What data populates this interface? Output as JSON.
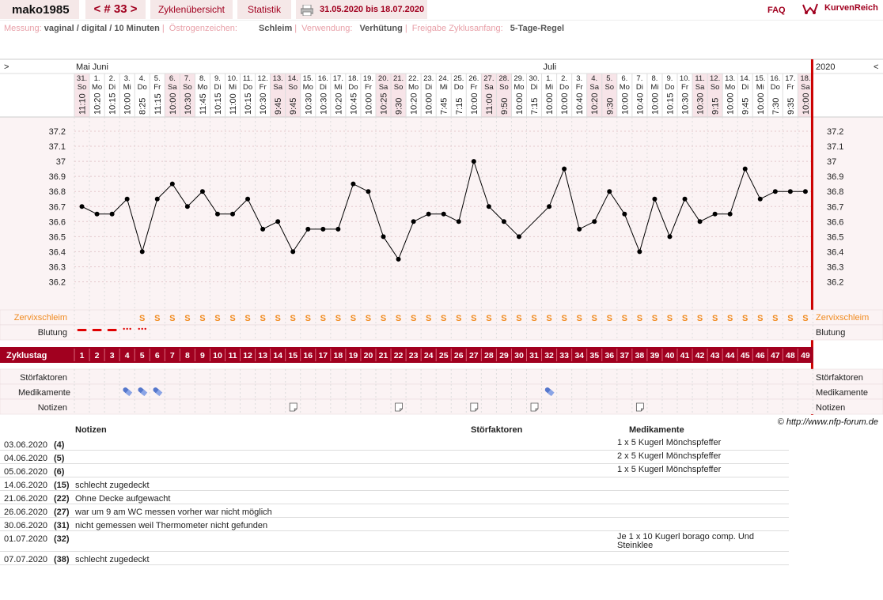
{
  "header": {
    "username": "mako1985",
    "cycle_nav": "< # 33 >",
    "tab_cycles": "Zyklenübersicht",
    "tab_stats": "Statistik",
    "date_range": "31.05.2020 bis 18.07.2020",
    "faq": "FAQ",
    "brand": "KurvenReich"
  },
  "subheader": {
    "messung_label": "Messung:",
    "messung_value": "vaginal / digital / 10 Minuten",
    "oestrogen_label": "Östrogenzeichen:",
    "oestrogen_value": "Schleim",
    "verwendung_label": "Verwendung:",
    "verwendung_value": "Verhütung",
    "freigabe_label": "Freigabe Zyklusanfang:",
    "freigabe_value": "5-Tage-Regel"
  },
  "chart_nav": {
    "prev": ">",
    "next": "<",
    "year": "2020"
  },
  "months": [
    {
      "label": "Mai Juni",
      "day_index": 0
    },
    {
      "label": "Juli",
      "day_index": 31
    }
  ],
  "chart_data": {
    "type": "line",
    "ylim": [
      36.1,
      37.25
    ],
    "yticks": [
      "37.2",
      "37.1",
      "37",
      "36.9",
      "36.8",
      "36.7",
      "36.6",
      "36.5",
      "36.4",
      "36.3",
      "36.2"
    ],
    "dates": [
      "31.",
      "1.",
      "2.",
      "3.",
      "4.",
      "5.",
      "6.",
      "7.",
      "8.",
      "9.",
      "10.",
      "11.",
      "12.",
      "13.",
      "14.",
      "15.",
      "16.",
      "17.",
      "18.",
      "19.",
      "20.",
      "21.",
      "22.",
      "23.",
      "24.",
      "25.",
      "26.",
      "27.",
      "28.",
      "29.",
      "30.",
      "1.",
      "2.",
      "3.",
      "4.",
      "5.",
      "6.",
      "7.",
      "8.",
      "9.",
      "10.",
      "11.",
      "12.",
      "13.",
      "14.",
      "15.",
      "16.",
      "17.",
      "18."
    ],
    "weekdays": [
      "So",
      "Mo",
      "Di",
      "Mi",
      "Do",
      "Fr",
      "Sa",
      "So",
      "Mo",
      "Di",
      "Mi",
      "Do",
      "Fr",
      "Sa",
      "So",
      "Mo",
      "Di",
      "Mi",
      "Do",
      "Fr",
      "Sa",
      "So",
      "Mo",
      "Di",
      "Mi",
      "Do",
      "Fr",
      "Sa",
      "So",
      "Mo",
      "Di",
      "Mi",
      "Do",
      "Fr",
      "Sa",
      "So",
      "Mo",
      "Di",
      "Mi",
      "Do",
      "Fr",
      "Sa",
      "So",
      "Mo",
      "Di",
      "Mi",
      "Do",
      "Fr",
      "Sa"
    ],
    "times": [
      "11:10",
      "10:20",
      "10:15",
      "10:00",
      "8:25",
      "11:15",
      "10:00",
      "10:30",
      "11:45",
      "10:15",
      "11:00",
      "10:15",
      "10:30",
      "9:45",
      "9:45",
      "10:30",
      "10:30",
      "10:20",
      "10:45",
      "10:00",
      "10:25",
      "9:30",
      "10:20",
      "10:00",
      "7:45",
      "7:15",
      "10:00",
      "11:00",
      "9:50",
      "10:00",
      "7:15",
      "10:00",
      "10:00",
      "10:40",
      "10:20",
      "9:30",
      "10:00",
      "10:40",
      "10:00",
      "10:15",
      "10:30",
      "10:30",
      "9:15",
      "10:00",
      "9:45",
      "10:00",
      "7:30",
      "9:35",
      "10:00"
    ],
    "values": [
      36.7,
      36.65,
      36.65,
      36.75,
      36.4,
      36.75,
      36.85,
      36.7,
      36.8,
      36.65,
      36.65,
      36.75,
      36.55,
      36.6,
      36.4,
      36.55,
      36.55,
      36.55,
      36.85,
      36.8,
      36.5,
      36.35,
      36.6,
      36.65,
      36.65,
      36.6,
      37.0,
      36.7,
      36.6,
      36.5,
      null,
      36.7,
      36.95,
      36.55,
      36.6,
      36.8,
      36.65,
      36.4,
      36.75,
      36.5,
      36.75,
      36.6,
      36.65,
      36.65,
      36.95,
      36.75,
      36.8,
      36.8,
      36.8
    ],
    "cycle_days": [
      "1",
      "2",
      "3",
      "4",
      "5",
      "6",
      "7",
      "8",
      "9",
      "10",
      "11",
      "12",
      "13",
      "14",
      "15",
      "16",
      "17",
      "18",
      "19",
      "20",
      "21",
      "22",
      "23",
      "24",
      "25",
      "26",
      "27",
      "28",
      "29",
      "30",
      "31",
      "32",
      "33",
      "34",
      "35",
      "36",
      "37",
      "38",
      "39",
      "40",
      "41",
      "42",
      "43",
      "44",
      "45",
      "46",
      "47",
      "48",
      "49"
    ],
    "cervix_mucus_symbol": "S",
    "cervix_mucus_days": [
      5,
      6,
      7,
      8,
      9,
      10,
      11,
      12,
      13,
      14,
      15,
      16,
      17,
      18,
      19,
      20,
      21,
      22,
      23,
      24,
      25,
      26,
      27,
      28,
      29,
      30,
      31,
      32,
      33,
      34,
      35,
      36,
      37,
      38,
      39,
      40,
      41,
      42,
      43,
      44,
      45,
      46,
      47,
      48,
      49
    ],
    "bleeding": [
      {
        "day": 1,
        "type": "strong"
      },
      {
        "day": 2,
        "type": "strong"
      },
      {
        "day": 3,
        "type": "strong"
      },
      {
        "day": 4,
        "type": "spotting"
      },
      {
        "day": 5,
        "type": "spotting"
      }
    ],
    "medication_days": [
      4,
      5,
      6,
      32
    ],
    "note_days": [
      15,
      22,
      27,
      31,
      38
    ]
  },
  "row_labels": {
    "zervix": "Zervixschleim",
    "blutung": "Blutung",
    "zyklustag": "Zyklustag",
    "stoer": "Störfaktoren",
    "medi": "Medikamente",
    "notizen": "Notizen"
  },
  "copyright": "© http://www.nfp-forum.de",
  "notes_table": {
    "headers": {
      "notes": "Notizen",
      "disturb": "Störfaktoren",
      "meds": "Medikamente"
    },
    "rows": [
      {
        "date": "03.06.2020",
        "day": "(4)",
        "note": "",
        "meds": "1 x 5 Kugerl Mönchspfeffer"
      },
      {
        "date": "04.06.2020",
        "day": "(5)",
        "note": "",
        "meds": "2 x 5 Kugerl Mönchspfeffer"
      },
      {
        "date": "05.06.2020",
        "day": "(6)",
        "note": "",
        "meds": "1 x 5 Kugerl Mönchspfeffer"
      },
      {
        "date": "14.06.2020",
        "day": "(15)",
        "note": "schlecht zugedeckt",
        "meds": ""
      },
      {
        "date": "21.06.2020",
        "day": "(22)",
        "note": "Ohne Decke aufgewacht",
        "meds": ""
      },
      {
        "date": "26.06.2020",
        "day": "(27)",
        "note": "war um 9 am WC messen vorher war nicht möglich",
        "meds": ""
      },
      {
        "date": "30.06.2020",
        "day": "(31)",
        "note": "nicht gemessen weil Thermometer nicht gefunden",
        "meds": ""
      },
      {
        "date": "01.07.2020",
        "day": "(32)",
        "note": "",
        "meds": "Je 1 x 10 Kugerl borago comp. Und Steinklee"
      },
      {
        "date": "07.07.2020",
        "day": "(38)",
        "note": "schlecht zugedeckt",
        "meds": ""
      }
    ]
  },
  "colors": {
    "accent": "#a1001f",
    "mucus": "#f08a1e",
    "pill": "#5577cc",
    "weekend": "#f7e4e8"
  }
}
